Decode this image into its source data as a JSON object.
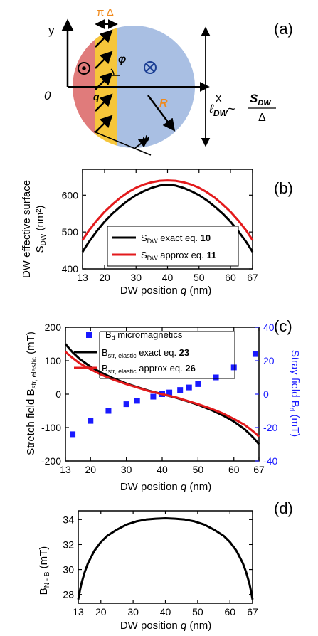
{
  "diagram": {
    "panel_label": "(a)",
    "y_axis": "y",
    "x_axis": "x",
    "origin": "0",
    "q_label": "q",
    "phi_label": "φ",
    "psi_label": "ψ",
    "R_label": "R",
    "width_label": "π Δ",
    "length_prefix": "ℓ",
    "length_sub": "DW",
    "length_tilde": "~",
    "length_num": "S",
    "length_num_sub": "DW",
    "length_den": "Δ",
    "colors": {
      "left_domain": "#e07b7b",
      "wall": "#f6c63a",
      "right_domain": "#a9bfe3",
      "accent": "#f08a1c"
    }
  },
  "chart_data": [
    {
      "panel_label": "(b)",
      "type": "line",
      "xlabel_prefix": "DW position ",
      "xlabel_var": "q",
      "xlabel_unit": " (nm)",
      "ylabel_line1": "DW effective surface",
      "ylabel_line2_main": "S",
      "ylabel_line2_sub": "DW",
      "ylabel_line2_unit": " (nm²)",
      "xlim": [
        13,
        67
      ],
      "ylim": [
        400,
        670
      ],
      "xticks": [
        13,
        20,
        30,
        40,
        50,
        60,
        67
      ],
      "yticks": [
        400,
        500,
        600
      ],
      "series": [
        {
          "name": "S",
          "name_sub": "DW",
          "name_rest": " exact eq. ",
          "eq": "10",
          "color": "#000000",
          "x": [
            13,
            15,
            17.5,
            20,
            22.5,
            25,
            27.5,
            30,
            32.5,
            35,
            37.5,
            40,
            42.5,
            45,
            47.5,
            50,
            52.5,
            55,
            57.5,
            60,
            62.5,
            65,
            67
          ],
          "y": [
            446,
            473,
            502,
            528,
            550,
            569,
            586,
            600,
            611,
            620,
            626,
            628,
            626,
            620,
            611,
            600,
            586,
            569,
            550,
            528,
            502,
            473,
            446
          ]
        },
        {
          "name": "S",
          "name_sub": "DW",
          "name_rest": " approx eq. ",
          "eq": "11",
          "color": "#e31a1c",
          "x": [
            13,
            15,
            17.5,
            20,
            22.5,
            25,
            27.5,
            30,
            32.5,
            35,
            37.5,
            40,
            42.5,
            45,
            47.5,
            50,
            52.5,
            55,
            57.5,
            60,
            62.5,
            65,
            67
          ],
          "y": [
            478,
            504,
            531,
            555,
            575,
            593,
            608,
            620,
            629,
            635,
            639,
            640,
            639,
            635,
            629,
            620,
            608,
            593,
            575,
            555,
            531,
            504,
            478
          ]
        }
      ]
    },
    {
      "panel_label": "(c)",
      "type": "line",
      "xlabel_prefix": "DW position ",
      "xlabel_var": "q",
      "xlabel_unit": " (nm)",
      "ylabel_main": "Stretch field B",
      "ylabel_sub": "str, elastic",
      "ylabel_unit": " (mT)",
      "y2label_main": "Stray field B",
      "y2label_sub": "d",
      "y2label_unit": " (mT)",
      "xlim": [
        13,
        67
      ],
      "ylim": [
        -200,
        200
      ],
      "y2lim": [
        -40,
        40
      ],
      "xticks": [
        13,
        20,
        30,
        40,
        50,
        60,
        67
      ],
      "yticks": [
        -200,
        -100,
        0,
        100,
        200
      ],
      "y2ticks": [
        -40,
        -20,
        0,
        20,
        40
      ],
      "series": [
        {
          "name": "B",
          "name_sub": "d",
          "name_rest": " micromagnetics",
          "eq": "",
          "color": "#1a1aff",
          "kind": "scatter",
          "axis": "y2",
          "x": [
            15,
            20,
            25,
            30,
            33,
            37.5,
            40,
            42,
            45,
            47.5,
            50,
            55,
            60,
            66
          ],
          "y": [
            -24,
            -16,
            -10,
            -6,
            -4,
            -1.5,
            0,
            1,
            2.5,
            4,
            6,
            10,
            16,
            24
          ]
        },
        {
          "name": "B",
          "name_sub": "str, elastic",
          "name_rest": " exact eq. ",
          "eq": "23",
          "color": "#000000",
          "kind": "line",
          "axis": "y",
          "x": [
            13,
            14,
            15,
            17,
            20,
            23,
            26,
            30,
            33,
            36,
            40,
            44,
            47,
            50,
            54,
            57,
            60,
            63,
            65,
            66,
            67
          ],
          "y": [
            150,
            137,
            125,
            105,
            82,
            64,
            49,
            32,
            21,
            11,
            0,
            -11,
            -21,
            -32,
            -49,
            -64,
            -82,
            -105,
            -125,
            -137,
            -150
          ]
        },
        {
          "name": "B",
          "name_sub": "str, elastic",
          "name_rest": " approx eq. ",
          "eq": "26",
          "color": "#e31a1c",
          "kind": "line",
          "axis": "y",
          "x": [
            13,
            14,
            15,
            17,
            20,
            23,
            26,
            30,
            33,
            36,
            40,
            44,
            47,
            50,
            54,
            57,
            60,
            63,
            65,
            66,
            67
          ],
          "y": [
            127,
            117,
            108,
            92,
            74,
            58,
            45,
            30,
            20,
            10,
            0,
            -10,
            -20,
            -30,
            -45,
            -58,
            -74,
            -92,
            -108,
            -117,
            -127
          ]
        }
      ]
    },
    {
      "panel_label": "(d)",
      "type": "line",
      "xlabel_prefix": "DW position ",
      "xlabel_var": "q",
      "xlabel_unit": " (nm)",
      "ylabel_main": "B",
      "ylabel_sub": "N - B",
      "ylabel_unit": " (mT)",
      "xlim": [
        13,
        67
      ],
      "ylim": [
        27.3,
        34.7
      ],
      "xticks": [
        13,
        20,
        30,
        40,
        50,
        60,
        67
      ],
      "yticks": [
        28,
        30,
        32,
        34
      ],
      "series": [
        {
          "name": "",
          "color": "#000000",
          "x": [
            13,
            13.5,
            14,
            15,
            16,
            17,
            18,
            20,
            22,
            25,
            28,
            31,
            34,
            37,
            40,
            43,
            46,
            49,
            52,
            55,
            58,
            60,
            62,
            63,
            64,
            65,
            66,
            66.5,
            67
          ],
          "y": [
            27.6,
            28.3,
            28.9,
            29.8,
            30.5,
            31.0,
            31.5,
            32.2,
            32.7,
            33.2,
            33.6,
            33.85,
            34.0,
            34.07,
            34.1,
            34.07,
            34.0,
            33.85,
            33.6,
            33.2,
            32.7,
            32.2,
            31.5,
            31.0,
            30.5,
            29.8,
            28.9,
            28.3,
            27.6
          ]
        }
      ]
    }
  ]
}
